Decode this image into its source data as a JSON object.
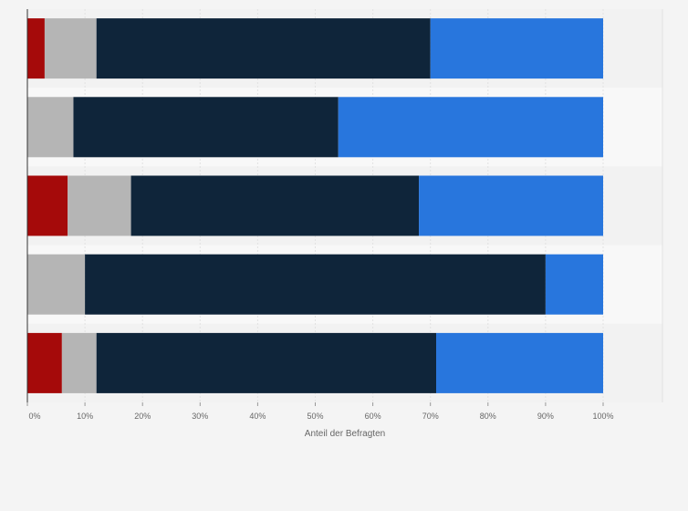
{
  "chart_data": {
    "type": "bar",
    "orientation": "horizontal",
    "stacked": true,
    "categories": [
      "",
      "",
      "",
      "",
      ""
    ],
    "series": [
      {
        "color": "#a50a0a",
        "values": [
          3,
          0,
          7,
          0,
          6
        ]
      },
      {
        "color": "#b5b5b5",
        "values": [
          9,
          8,
          11,
          10,
          6
        ]
      },
      {
        "color": "#0f253a",
        "values": [
          58,
          46,
          50,
          80,
          59
        ]
      },
      {
        "color": "#2876dd",
        "values": [
          30,
          46,
          32,
          10,
          29
        ]
      }
    ],
    "xlim": [
      0,
      100
    ],
    "x_ticks": [
      "0%",
      "10%",
      "20%",
      "30%",
      "40%",
      "50%",
      "60%",
      "70%",
      "80%",
      "90%",
      "100%"
    ],
    "xlabel": "Anteil der Befragten",
    "ylabel": "",
    "grid": true,
    "legend": "none"
  }
}
